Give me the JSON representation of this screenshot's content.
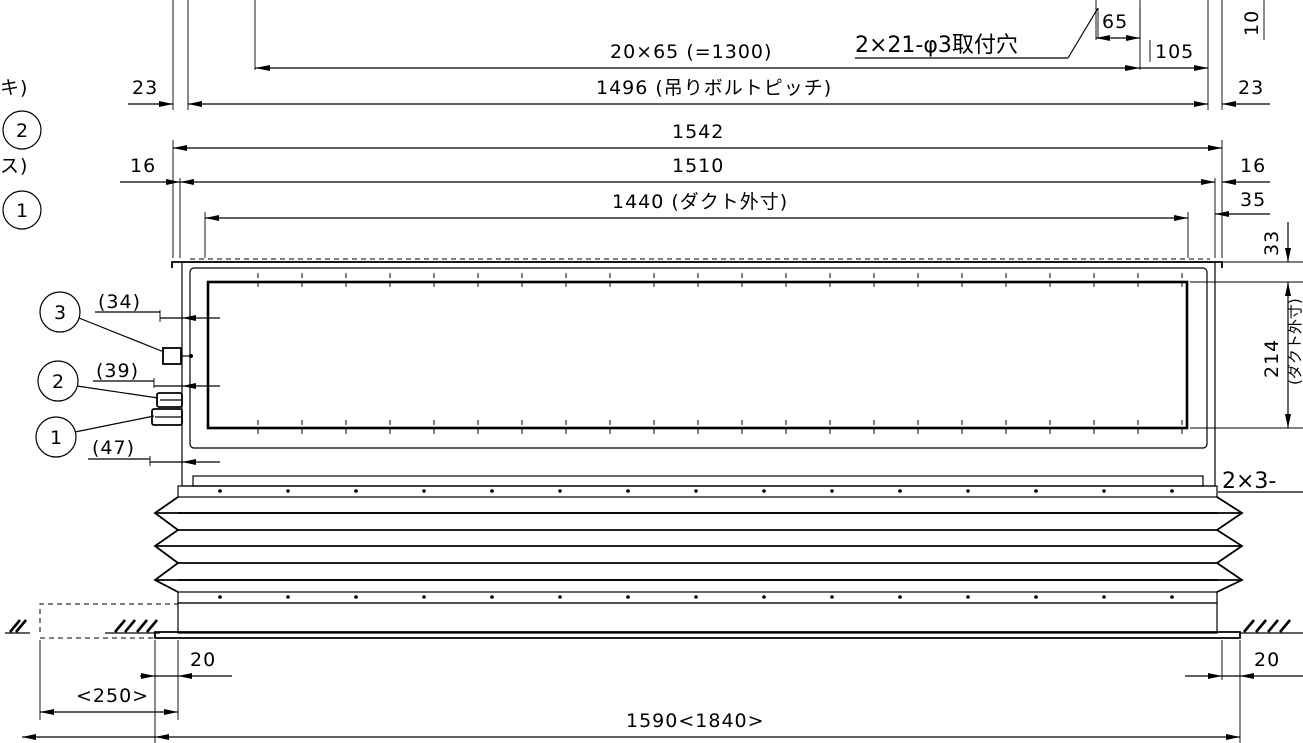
{
  "top_dims": {
    "pitch_label": "20×65 (=1300)",
    "holes_label": "2×21-φ3取付穴",
    "hole_spacing": "65",
    "edge_105": "105",
    "left_23": "23",
    "right_23": "23",
    "bolt_pitch": "1496 (吊りボルトピッチ)",
    "right_10": "10"
  },
  "width_dims": {
    "w1542": "1542",
    "left_16": "16",
    "w1510": "1510",
    "right_16": "16",
    "duct_outer": "1440 (ダクト外寸)",
    "right_35": "35"
  },
  "right_dims": {
    "d33": "33",
    "d214": "214",
    "duct_outer_v": "(ダクト外寸)",
    "d2x3": "2×3-"
  },
  "left_callouts": {
    "partial_top1": "キ)",
    "partial_top2": "ス)",
    "top_circle_2": "2",
    "top_circle_1": "1",
    "c3": "3",
    "c2": "2",
    "c1": "1",
    "d34": "(34)",
    "d39": "(39)",
    "d47": "(47)"
  },
  "bottom_dims": {
    "left_20": "20",
    "right_20": "20",
    "d250": "<250>",
    "overall": "1590<1840>"
  }
}
